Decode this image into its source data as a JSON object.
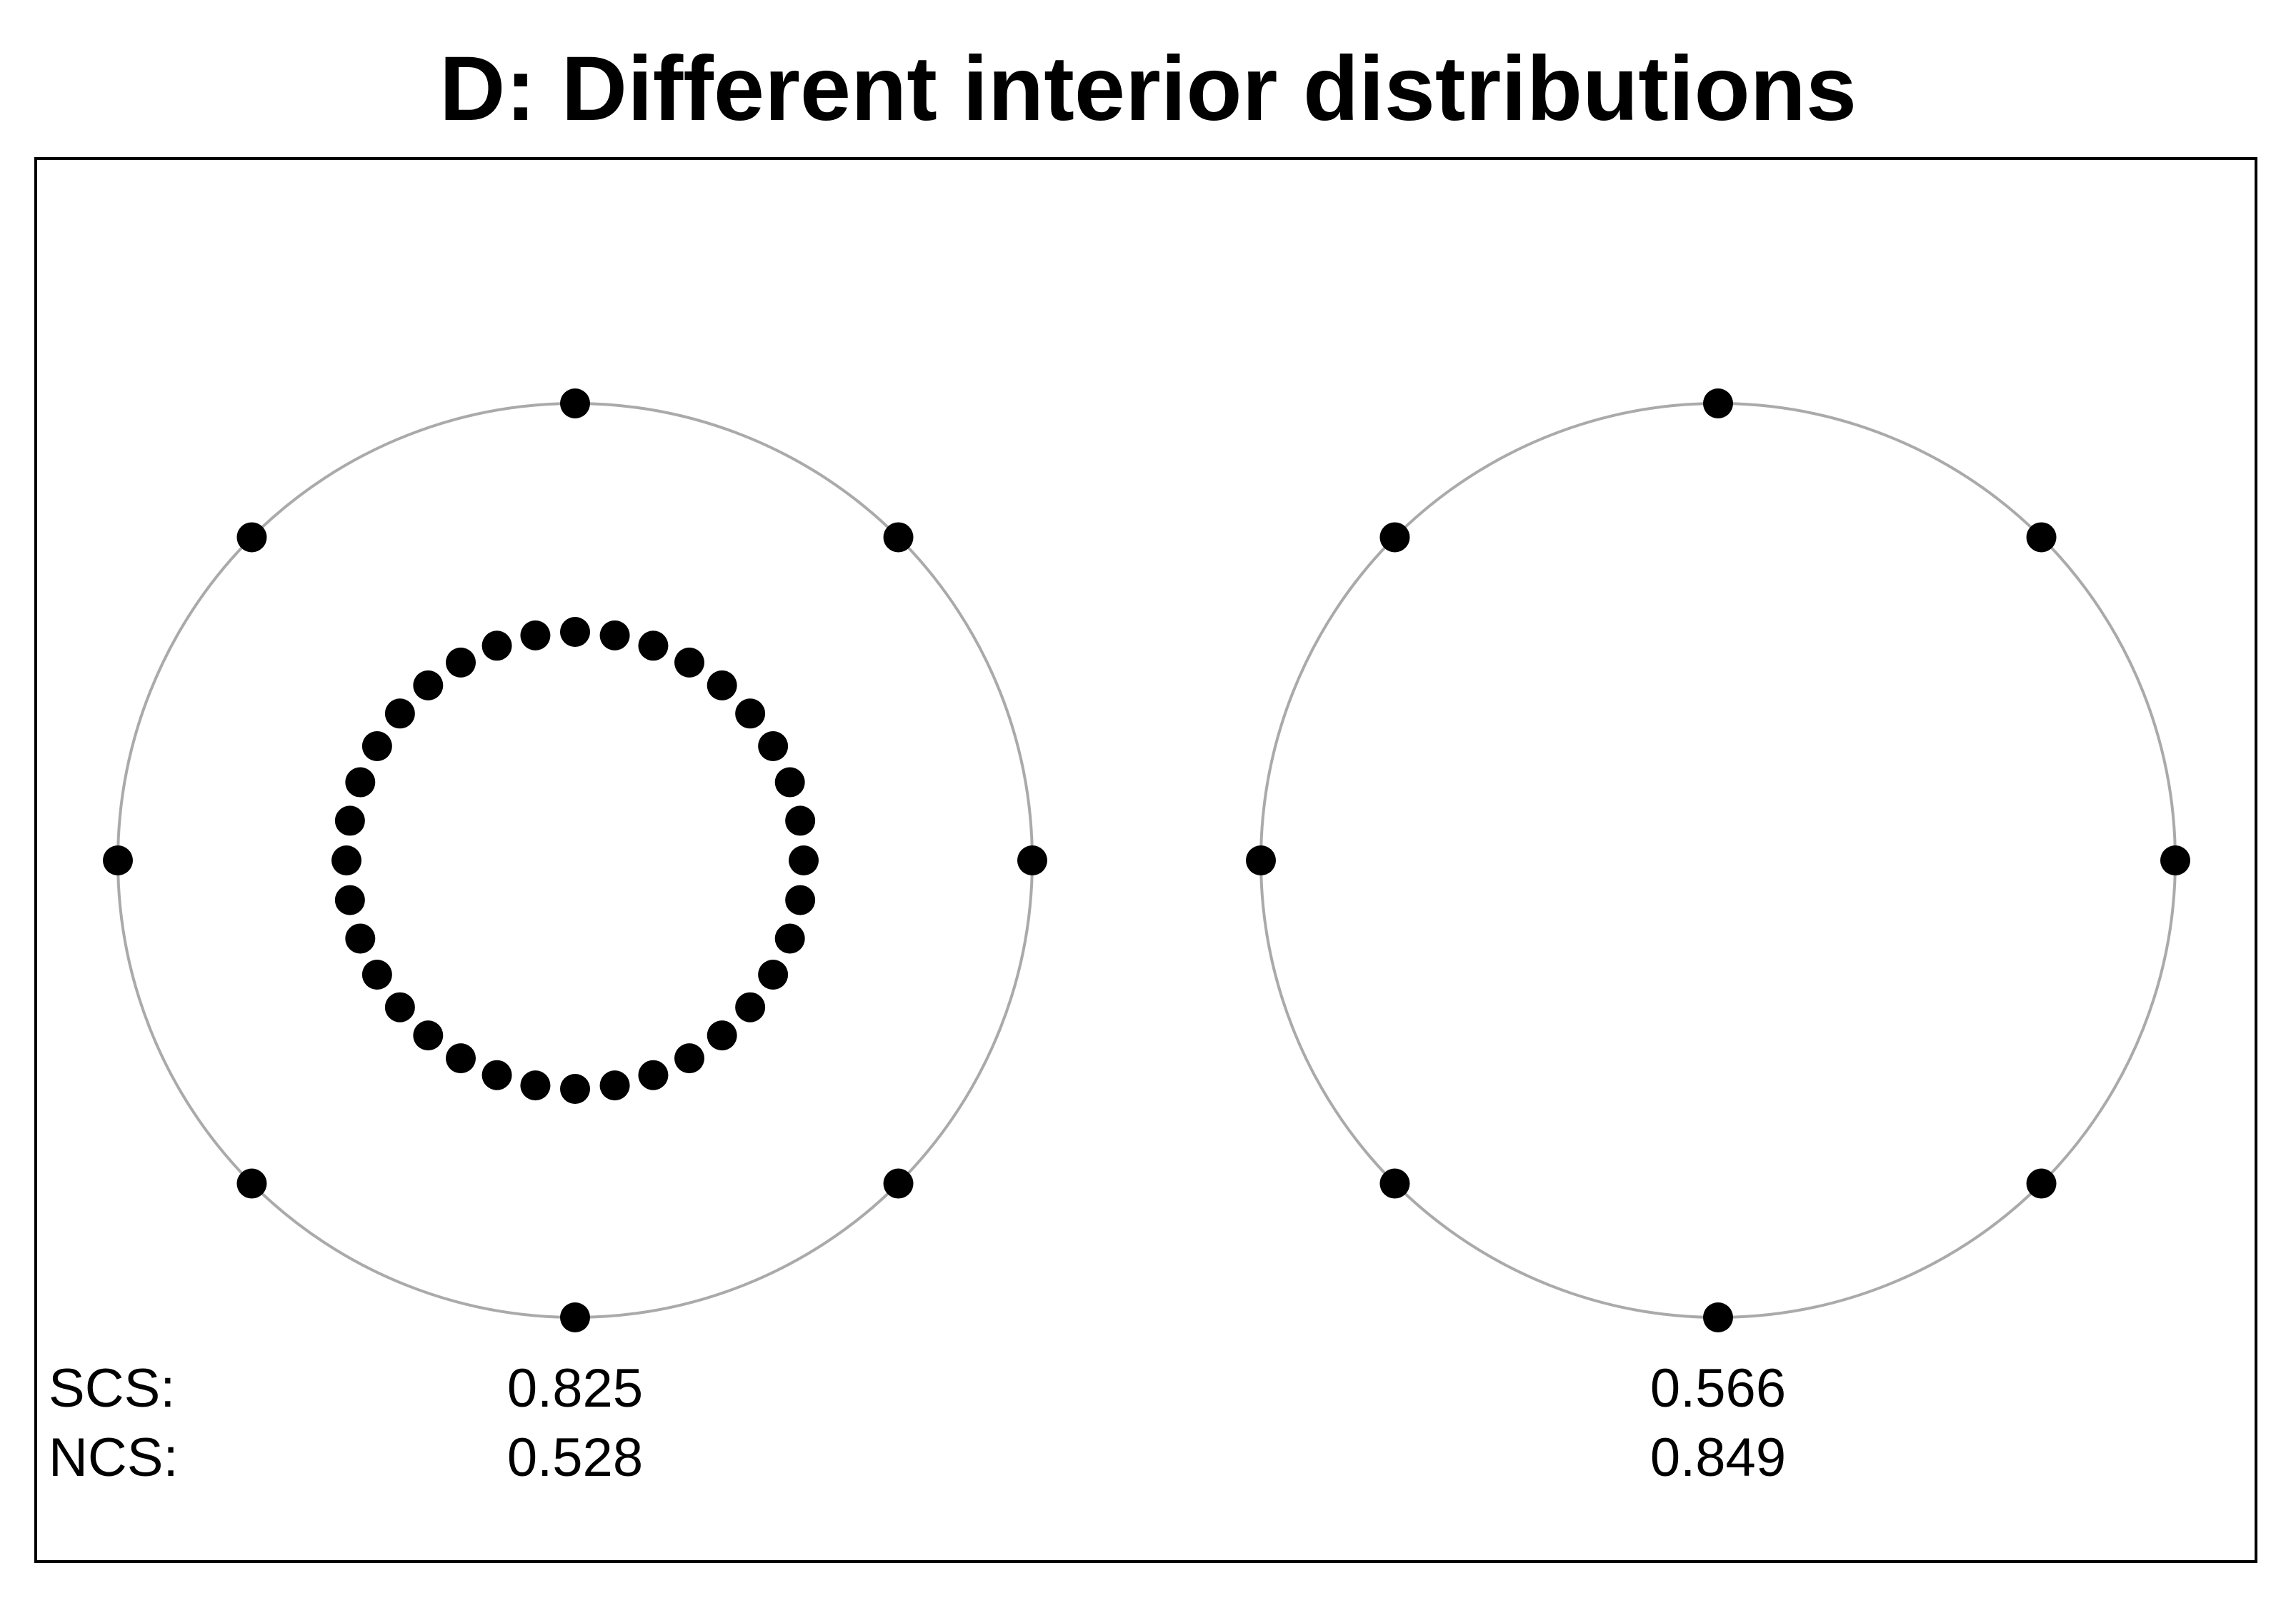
{
  "figure": {
    "title": "D: Different interior distributions"
  },
  "row_labels": {
    "scs": "SCS:",
    "ncs": "NCS:"
  },
  "colors": {
    "circle_stroke": "#aaaaaa",
    "point_fill": "#000000",
    "frame_stroke": "#000000",
    "text": "#000000"
  },
  "panels": [
    {
      "id": "left",
      "scs": "0.825",
      "ncs": "0.528",
      "boundary_points": 8,
      "interior_ring_points": 36,
      "interior_ring_radius_ratio": 0.5
    },
    {
      "id": "right",
      "scs": "0.566",
      "ncs": "0.849",
      "boundary_points": 8,
      "interior_ring_points": 0,
      "interior_ring_radius_ratio": 0
    }
  ]
}
